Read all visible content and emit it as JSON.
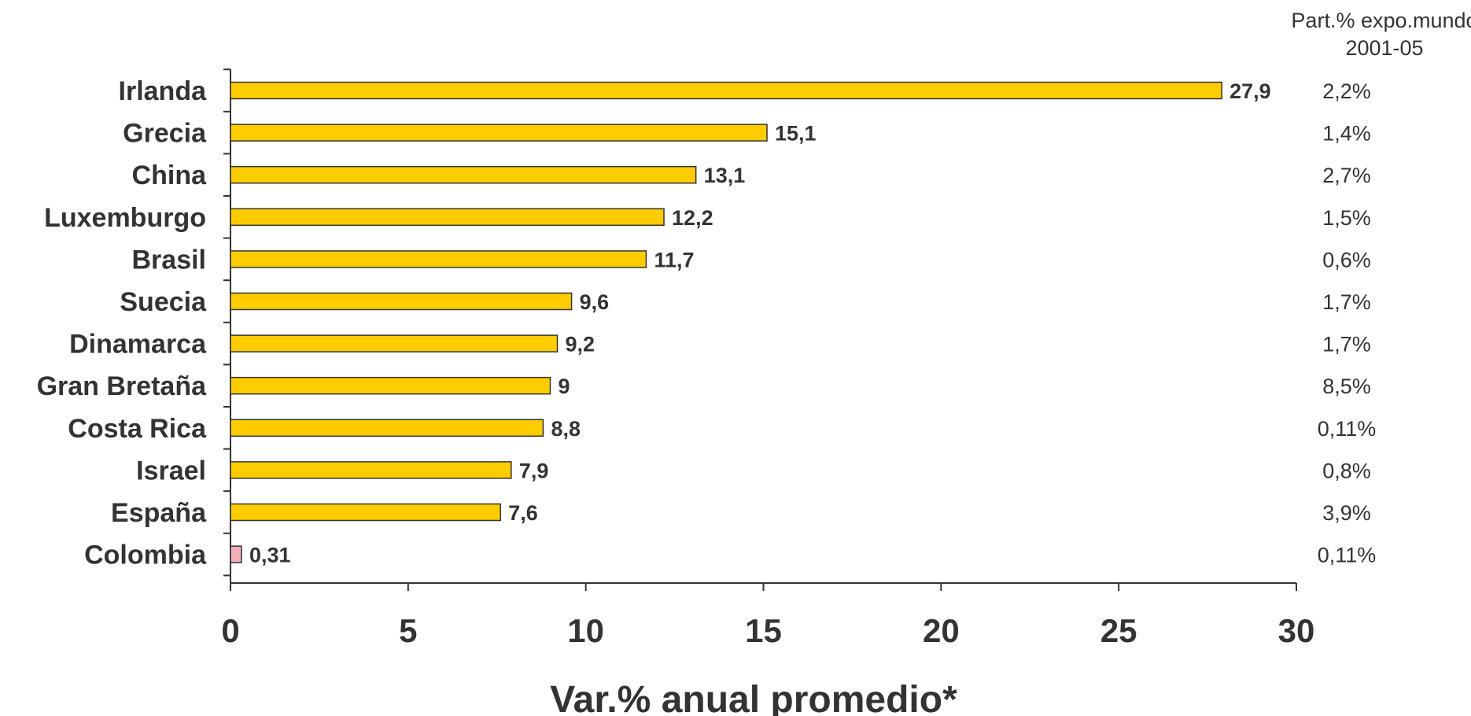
{
  "chart_data": {
    "type": "bar",
    "orientation": "horizontal",
    "categories": [
      "Irlanda",
      "Grecia",
      "China",
      "Luxemburgo",
      "Brasil",
      "Suecia",
      "Dinamarca",
      "Gran Bretaña",
      "Costa Rica",
      "Israel",
      "España",
      "Colombia"
    ],
    "values": [
      27.9,
      15.1,
      13.1,
      12.2,
      11.7,
      9.6,
      9.2,
      9,
      8.8,
      7.9,
      7.6,
      0.31
    ],
    "value_labels": [
      "27,9",
      "15,1",
      "13,1",
      "12,2",
      "11,7",
      "9,6",
      "9,2",
      "9",
      "8,8",
      "7,9",
      "7,6",
      "0,31"
    ],
    "bar_colors": [
      "#FFCC00",
      "#FFCC00",
      "#FFCC00",
      "#FFCC00",
      "#FFCC00",
      "#FFCC00",
      "#FFCC00",
      "#FFCC00",
      "#FFCC00",
      "#FFCC00",
      "#FFCC00",
      "#F4AEB8"
    ],
    "xlabel": "Var.% anual promedio*",
    "xlim": [
      0,
      30
    ],
    "xticks": [
      0,
      5,
      10,
      15,
      20,
      25,
      30
    ],
    "grid": false,
    "share_column": {
      "header_line1": "Part.% expo.mundo",
      "header_line2": "2001-05",
      "values": [
        "2,2%",
        "1,4%",
        "2,7%",
        "1,5%",
        "0,6%",
        "1,7%",
        "1,7%",
        "8,5%",
        "0,11%",
        "0,8%",
        "3,9%",
        "0,11%"
      ]
    }
  },
  "colors": {
    "bar_default": "#FFCC00",
    "bar_highlight": "#F4AEB8",
    "bar_outline": "#333333",
    "text": "#333333"
  }
}
